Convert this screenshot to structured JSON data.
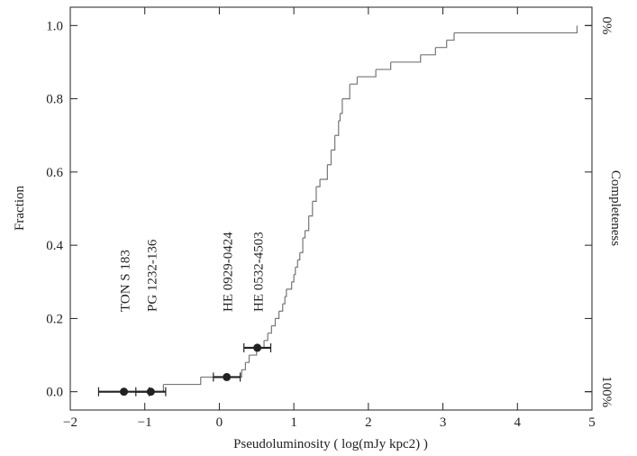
{
  "chart_data": {
    "type": "step",
    "xlabel": "Pseudoluminosity ( log(mJy kpc2) )",
    "ylabel": "Fraction",
    "y2label": "Completeness",
    "color": "#777777",
    "x": [
      -0.75,
      -0.25,
      0.3,
      0.35,
      0.4,
      0.5,
      0.6,
      0.65,
      0.7,
      0.75,
      0.8,
      0.85,
      0.88,
      0.9,
      0.97,
      1.0,
      1.02,
      1.05,
      1.08,
      1.12,
      1.15,
      1.2,
      1.25,
      1.3,
      1.35,
      1.45,
      1.5,
      1.55,
      1.6,
      1.62,
      1.65,
      1.75,
      1.85,
      2.1,
      2.3,
      2.7,
      2.9,
      3.05,
      3.15,
      4.8
    ],
    "values": [
      0.02,
      0.04,
      0.06,
      0.08,
      0.1,
      0.12,
      0.14,
      0.16,
      0.18,
      0.2,
      0.22,
      0.24,
      0.26,
      0.28,
      0.3,
      0.32,
      0.34,
      0.36,
      0.38,
      0.42,
      0.44,
      0.48,
      0.52,
      0.56,
      0.58,
      0.62,
      0.66,
      0.7,
      0.74,
      0.76,
      0.8,
      0.84,
      0.86,
      0.88,
      0.9,
      0.92,
      0.94,
      0.96,
      0.98,
      1.0
    ],
    "points": {
      "color": "#222222",
      "names": [
        "TON S 183",
        "PG 1232-136",
        "HE 0929-0424",
        "HE 0532-4503"
      ],
      "x": [
        -1.28,
        -0.92,
        0.1,
        0.51
      ],
      "values": [
        0,
        0,
        0.04,
        0.12
      ],
      "xerr": [
        0.34,
        0.2,
        0.18,
        0.18
      ]
    },
    "xlim": [
      -2,
      5
    ],
    "xticks": [
      {
        "value": -2,
        "label": "−2"
      },
      {
        "value": -1,
        "label": "−1"
      },
      0,
      1,
      2,
      3,
      4,
      5
    ],
    "ylim": [
      -0.05,
      1.05
    ],
    "yticks": [
      {
        "value": 0,
        "label": "0.0"
      },
      {
        "value": 0.2,
        "label": "0.2"
      },
      {
        "value": 0.4,
        "label": "0.4"
      },
      {
        "value": 0.6,
        "label": "0.6"
      },
      {
        "value": 0.8,
        "label": "0.8"
      },
      {
        "value": 1,
        "label": "1.0"
      }
    ],
    "y2lim": [
      105,
      -5
    ],
    "y2ticks": [
      {
        "value": 0,
        "label": "0%"
      },
      {
        "value": 100,
        "label": "100%"
      }
    ]
  }
}
